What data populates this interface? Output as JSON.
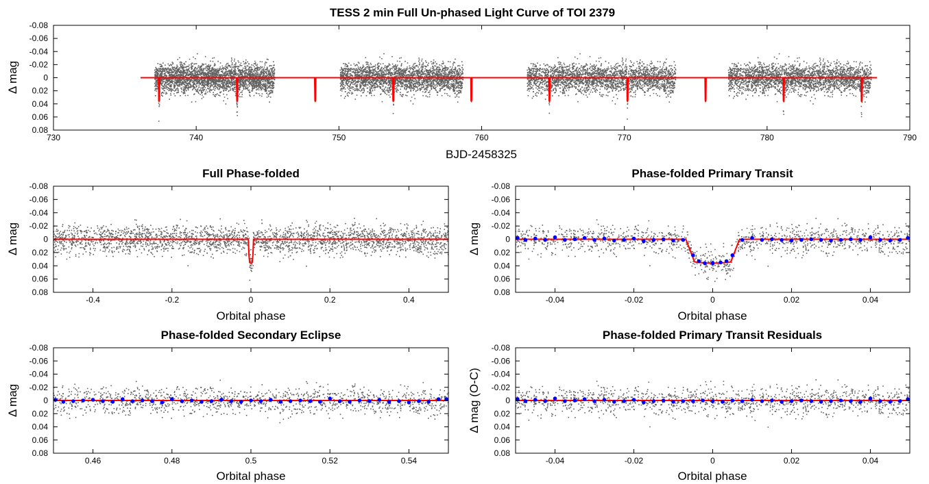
{
  "chart_data": [
    {
      "id": "full",
      "type": "scatter",
      "title": "TESS 2 min Full Un-phased Light Curve of TOI 2379",
      "xlabel": "BJD-2458325",
      "ylabel": "Δ mag",
      "xlim": [
        730,
        790
      ],
      "ylim": [
        0.08,
        -0.08
      ],
      "xticks": [
        730,
        740,
        750,
        760,
        770,
        780,
        790
      ],
      "yticks": [
        -0.08,
        -0.06,
        -0.04,
        -0.02,
        0,
        0.02,
        0.04,
        0.06,
        0.08
      ],
      "grid": false,
      "point_color": "#606060",
      "model_color": "#ff0000",
      "segments": [
        [
          737.1,
          745.5
        ],
        [
          750.1,
          758.7
        ],
        [
          763.2,
          773.6
        ],
        [
          777.3,
          787.3
        ]
      ],
      "model_range": [
        736.1,
        787.7
      ],
      "transit_epoch": 737.4,
      "period": 5.47,
      "transit_depth": 0.036,
      "scatter_sigma": 0.011
    },
    {
      "id": "phase_full",
      "type": "scatter",
      "title": "Full Phase-folded",
      "xlabel": "Orbital phase",
      "ylabel": "Δ mag",
      "xlim": [
        -0.5,
        0.5
      ],
      "ylim": [
        0.08,
        -0.08
      ],
      "xticks": [
        -0.4,
        -0.2,
        0,
        0.2,
        0.4
      ],
      "yticks": [
        -0.08,
        -0.06,
        -0.04,
        -0.02,
        0,
        0.02,
        0.04,
        0.06,
        0.08
      ],
      "grid": false,
      "point_color": "#606060",
      "model_color": "#ff0000",
      "transit_halfwidth": 0.0065,
      "transit_depth": 0.036
    },
    {
      "id": "primary",
      "type": "scatter",
      "title": "Phase-folded Primary Transit",
      "xlabel": "Orbital phase",
      "ylabel": "Δ mag",
      "xlim": [
        -0.05,
        0.05
      ],
      "ylim": [
        0.08,
        -0.08
      ],
      "xticks": [
        -0.04,
        -0.02,
        0,
        0.02,
        0.04
      ],
      "yticks": [
        -0.08,
        -0.06,
        -0.04,
        -0.02,
        0,
        0.02,
        0.04,
        0.06,
        0.08
      ],
      "grid": false,
      "point_color": "#606060",
      "bin_color": "#0000ff",
      "model_color": "#ff0000",
      "transit_halfwidth": 0.0068,
      "ingress": 0.0022,
      "transit_depth": 0.036,
      "binned_x": [
        -0.0495,
        -0.0475,
        -0.045,
        -0.0425,
        -0.04,
        -0.0375,
        -0.035,
        -0.0325,
        -0.03,
        -0.0275,
        -0.025,
        -0.0225,
        -0.02,
        -0.0175,
        -0.015,
        -0.0125,
        -0.01,
        -0.0075,
        -0.005,
        -0.0035,
        -0.002,
        0,
        0.002,
        0.0035,
        0.005,
        0.0075,
        0.01,
        0.0125,
        0.015,
        0.0175,
        0.02,
        0.0225,
        0.025,
        0.0275,
        0.03,
        0.0325,
        0.035,
        0.0375,
        0.04,
        0.0425,
        0.045,
        0.0475,
        0.0495
      ],
      "binned_y": [
        -0.002,
        0.001,
        -0.001,
        0.001,
        -0.003,
        0.001,
        0.0,
        -0.002,
        0.001,
        -0.001,
        0.002,
        0.001,
        -0.001,
        0.003,
        0.001,
        0.0,
        0.002,
        0.001,
        0.024,
        0.033,
        0.036,
        0.036,
        0.035,
        0.033,
        0.024,
        0.001,
        -0.002,
        0.001,
        0.0,
        0.001,
        0.002,
        0.001,
        0.0,
        0.001,
        0.002,
        0.001,
        0.0,
        0.001,
        -0.003,
        0.001,
        0.002,
        0.001,
        -0.002
      ]
    },
    {
      "id": "secondary",
      "type": "scatter",
      "title": "Phase-folded Secondary Eclipse",
      "xlabel": "Orbital phase",
      "ylabel": "Δ mag",
      "xlim": [
        0.45,
        0.55
      ],
      "ylim": [
        0.08,
        -0.08
      ],
      "xticks": [
        0.46,
        0.48,
        0.5,
        0.52,
        0.54
      ],
      "yticks": [
        -0.08,
        -0.06,
        -0.04,
        -0.02,
        0,
        0.02,
        0.04,
        0.06,
        0.08
      ],
      "grid": false,
      "point_color": "#606060",
      "bin_color": "#0000ff",
      "model_color": "#ff0000",
      "binned_x": [
        0.4505,
        0.4525,
        0.455,
        0.4575,
        0.46,
        0.4625,
        0.465,
        0.4675,
        0.47,
        0.4725,
        0.475,
        0.4775,
        0.48,
        0.4825,
        0.485,
        0.4875,
        0.49,
        0.4925,
        0.495,
        0.4975,
        0.5,
        0.5025,
        0.505,
        0.5075,
        0.51,
        0.5125,
        0.515,
        0.5175,
        0.52,
        0.5225,
        0.525,
        0.5275,
        0.53,
        0.5325,
        0.535,
        0.5375,
        0.54,
        0.5425,
        0.545,
        0.5475,
        0.5495
      ],
      "binned_y": [
        -0.001,
        0.002,
        0.001,
        0.0,
        -0.001,
        0.001,
        0.002,
        -0.002,
        0.001,
        0.0,
        0.001,
        0.003,
        -0.002,
        0.001,
        0.0,
        0.002,
        0.001,
        -0.001,
        0.001,
        0.002,
        0.0,
        0.001,
        -0.001,
        0.002,
        0.001,
        0.0,
        0.001,
        0.002,
        -0.003,
        0.001,
        0.002,
        0.0,
        0.001,
        -0.001,
        0.002,
        0.001,
        0.003,
        0.001,
        0.002,
        -0.002,
        -0.002
      ]
    },
    {
      "id": "residuals",
      "type": "scatter",
      "title": "Phase-folded Primary Transit Residuals",
      "xlabel": "Orbital phase",
      "ylabel": "Δ mag (O-C)",
      "xlim": [
        -0.05,
        0.05
      ],
      "ylim": [
        0.08,
        -0.08
      ],
      "xticks": [
        -0.04,
        -0.02,
        0,
        0.02,
        0.04
      ],
      "yticks": [
        -0.08,
        -0.06,
        -0.04,
        -0.02,
        0,
        0.02,
        0.04,
        0.06,
        0.08
      ],
      "grid": false,
      "point_color": "#606060",
      "bin_color": "#0000ff",
      "model_color": "#ff0000",
      "binned_x": [
        -0.0495,
        -0.0475,
        -0.045,
        -0.0425,
        -0.04,
        -0.0375,
        -0.035,
        -0.0325,
        -0.03,
        -0.0275,
        -0.025,
        -0.0225,
        -0.02,
        -0.0175,
        -0.015,
        -0.0125,
        -0.01,
        -0.0075,
        -0.005,
        -0.0025,
        0,
        0.0025,
        0.005,
        0.0075,
        0.01,
        0.0125,
        0.015,
        0.0175,
        0.02,
        0.0225,
        0.025,
        0.0275,
        0.03,
        0.0325,
        0.035,
        0.0375,
        0.04,
        0.0425,
        0.045,
        0.0475,
        0.0495
      ],
      "binned_y": [
        -0.002,
        0.001,
        -0.001,
        0.001,
        -0.003,
        0.001,
        0.0,
        -0.002,
        0.001,
        -0.001,
        0.002,
        0.001,
        -0.001,
        0.003,
        0.001,
        0.0,
        0.002,
        0.001,
        0.001,
        0.0,
        0.001,
        0.002,
        0.0,
        0.001,
        -0.001,
        0.001,
        0.0,
        0.002,
        0.001,
        0.0,
        0.001,
        0.002,
        0.001,
        0.0,
        0.001,
        0.002,
        -0.003,
        0.001,
        0.002,
        0.001,
        -0.002
      ]
    }
  ]
}
